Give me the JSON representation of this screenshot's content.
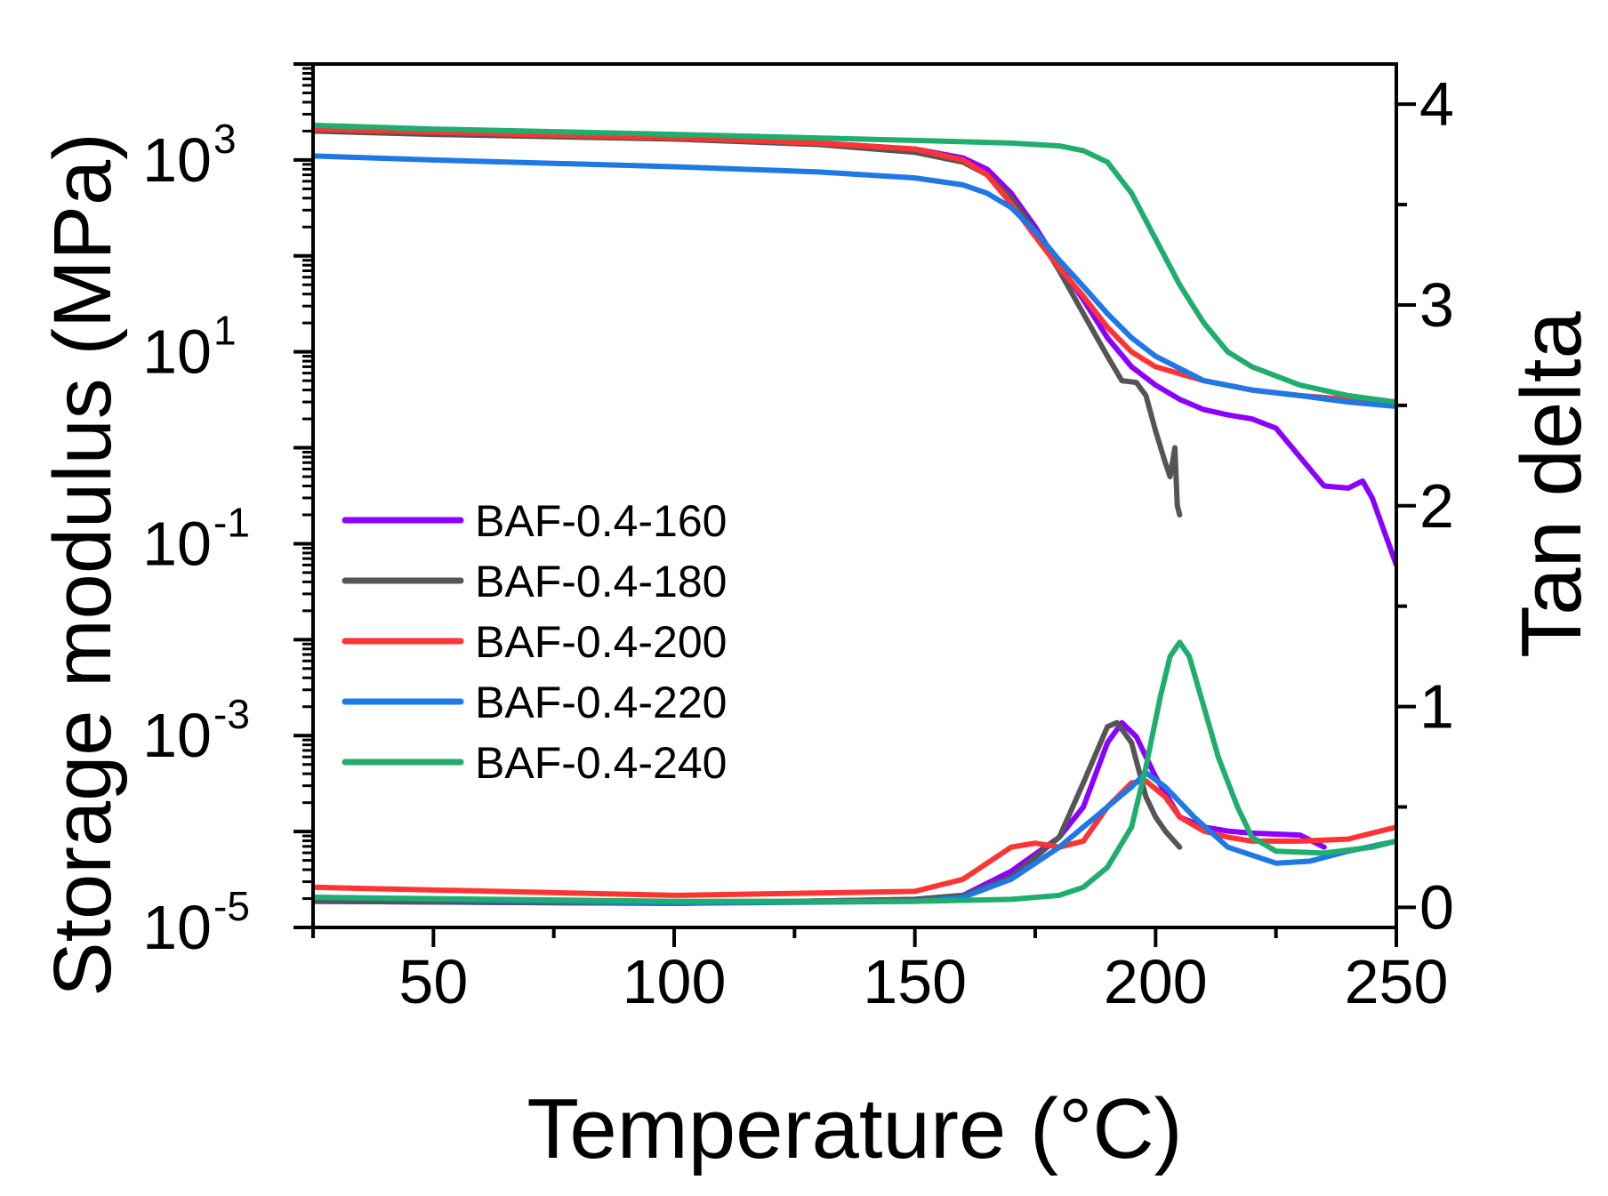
{
  "chart_data": {
    "type": "line",
    "title": "",
    "xlabel": "Temperature (°C)",
    "ylabel_left": "Storage modulus (MPa)",
    "ylabel_right": "Tan delta",
    "xlim": [
      25,
      250
    ],
    "ylim_left_log10": [
      -5,
      4
    ],
    "ylim_right": [
      -0.1,
      4.2
    ],
    "x_ticks": [
      50,
      100,
      150,
      200,
      250
    ],
    "x_tick_labels": [
      "50",
      "100",
      "150",
      "200",
      "250"
    ],
    "y_left_ticks": [
      {
        "exp": 3,
        "base": "10",
        "sup": "3"
      },
      {
        "exp": 1,
        "base": "10",
        "sup": "1"
      },
      {
        "exp": -1,
        "base": "10",
        "sup": "-1"
      },
      {
        "exp": -3,
        "base": "10",
        "sup": "-3"
      },
      {
        "exp": -5,
        "base": "10",
        "sup": "-5"
      }
    ],
    "y_right_ticks": [
      0,
      1,
      2,
      3,
      4
    ],
    "y_right_tick_labels": [
      "0",
      "1",
      "2",
      "3",
      "4"
    ],
    "legend_position": "middle-left",
    "series": [
      {
        "name": "BAF-0.4-160",
        "color": "#8B00FF",
        "storage_modulus": [
          [
            25,
            2100
          ],
          [
            50,
            1950
          ],
          [
            100,
            1700
          ],
          [
            130,
            1500
          ],
          [
            150,
            1300
          ],
          [
            160,
            1050
          ],
          [
            165,
            800
          ],
          [
            170,
            450
          ],
          [
            175,
            200
          ],
          [
            180,
            80
          ],
          [
            185,
            35
          ],
          [
            190,
            14
          ],
          [
            195,
            7
          ],
          [
            200,
            4.5
          ],
          [
            205,
            3.2
          ],
          [
            210,
            2.5
          ],
          [
            215,
            2.2
          ],
          [
            220,
            2.0
          ],
          [
            225,
            1.6
          ],
          [
            230,
            0.8
          ],
          [
            235,
            0.4
          ],
          [
            240,
            0.38
          ],
          [
            243,
            0.45
          ],
          [
            245,
            0.3
          ],
          [
            250,
            0.06
          ]
        ],
        "tan_delta": [
          [
            25,
            0.03
          ],
          [
            100,
            0.02
          ],
          [
            150,
            0.04
          ],
          [
            160,
            0.06
          ],
          [
            170,
            0.18
          ],
          [
            180,
            0.35
          ],
          [
            185,
            0.5
          ],
          [
            190,
            0.82
          ],
          [
            193,
            0.92
          ],
          [
            196,
            0.85
          ],
          [
            200,
            0.65
          ],
          [
            205,
            0.45
          ],
          [
            210,
            0.4
          ],
          [
            215,
            0.38
          ],
          [
            220,
            0.37
          ],
          [
            230,
            0.36
          ],
          [
            235,
            0.3
          ]
        ]
      },
      {
        "name": "BAF-0.4-180",
        "color": "#555555",
        "storage_modulus": [
          [
            25,
            2000
          ],
          [
            50,
            1850
          ],
          [
            100,
            1650
          ],
          [
            130,
            1450
          ],
          [
            150,
            1200
          ],
          [
            160,
            950
          ],
          [
            165,
            700
          ],
          [
            170,
            400
          ],
          [
            175,
            180
          ],
          [
            180,
            70
          ],
          [
            185,
            25
          ],
          [
            190,
            9
          ],
          [
            193,
            5
          ],
          [
            196,
            4.8
          ],
          [
            198,
            3.5
          ],
          [
            200,
            1.5
          ],
          [
            202,
            0.7
          ],
          [
            203,
            0.5
          ],
          [
            204,
            1.0
          ],
          [
            204.5,
            0.25
          ],
          [
            205,
            0.2
          ]
        ],
        "tan_delta": [
          [
            25,
            0.03
          ],
          [
            100,
            0.02
          ],
          [
            150,
            0.04
          ],
          [
            160,
            0.06
          ],
          [
            170,
            0.15
          ],
          [
            180,
            0.35
          ],
          [
            185,
            0.62
          ],
          [
            190,
            0.9
          ],
          [
            192,
            0.92
          ],
          [
            195,
            0.82
          ],
          [
            198,
            0.55
          ],
          [
            200,
            0.45
          ],
          [
            202,
            0.38
          ],
          [
            205,
            0.3
          ]
        ]
      },
      {
        "name": "BAF-0.4-200",
        "color": "#FF3333",
        "storage_modulus": [
          [
            25,
            2100
          ],
          [
            50,
            1950
          ],
          [
            100,
            1700
          ],
          [
            130,
            1500
          ],
          [
            150,
            1300
          ],
          [
            160,
            1000
          ],
          [
            165,
            700
          ],
          [
            170,
            350
          ],
          [
            175,
            160
          ],
          [
            180,
            75
          ],
          [
            185,
            38
          ],
          [
            190,
            18
          ],
          [
            195,
            10
          ],
          [
            200,
            7
          ],
          [
            210,
            5
          ],
          [
            220,
            4
          ],
          [
            230,
            3.5
          ],
          [
            240,
            3.2
          ],
          [
            250,
            3.0
          ]
        ],
        "tan_delta": [
          [
            25,
            0.1
          ],
          [
            100,
            0.06
          ],
          [
            150,
            0.08
          ],
          [
            160,
            0.14
          ],
          [
            165,
            0.22
          ],
          [
            170,
            0.3
          ],
          [
            175,
            0.32
          ],
          [
            180,
            0.3
          ],
          [
            185,
            0.33
          ],
          [
            190,
            0.5
          ],
          [
            195,
            0.62
          ],
          [
            198,
            0.63
          ],
          [
            202,
            0.55
          ],
          [
            205,
            0.45
          ],
          [
            210,
            0.38
          ],
          [
            215,
            0.35
          ],
          [
            220,
            0.33
          ],
          [
            230,
            0.33
          ],
          [
            240,
            0.34
          ],
          [
            250,
            0.4
          ]
        ]
      },
      {
        "name": "BAF-0.4-220",
        "color": "#1E78E6",
        "storage_modulus": [
          [
            25,
            1100
          ],
          [
            50,
            1000
          ],
          [
            100,
            850
          ],
          [
            130,
            750
          ],
          [
            150,
            650
          ],
          [
            160,
            550
          ],
          [
            165,
            450
          ],
          [
            170,
            320
          ],
          [
            175,
            180
          ],
          [
            180,
            90
          ],
          [
            185,
            48
          ],
          [
            190,
            25
          ],
          [
            195,
            14
          ],
          [
            200,
            9
          ],
          [
            210,
            5
          ],
          [
            220,
            4
          ],
          [
            230,
            3.5
          ],
          [
            240,
            3.0
          ],
          [
            250,
            2.7
          ]
        ],
        "tan_delta": [
          [
            25,
            0.05
          ],
          [
            100,
            0.02
          ],
          [
            150,
            0.03
          ],
          [
            160,
            0.05
          ],
          [
            170,
            0.14
          ],
          [
            175,
            0.22
          ],
          [
            180,
            0.3
          ],
          [
            185,
            0.4
          ],
          [
            190,
            0.5
          ],
          [
            195,
            0.6
          ],
          [
            198,
            0.67
          ],
          [
            202,
            0.6
          ],
          [
            208,
            0.45
          ],
          [
            215,
            0.3
          ],
          [
            225,
            0.22
          ],
          [
            232,
            0.23
          ],
          [
            240,
            0.28
          ],
          [
            250,
            0.33
          ]
        ]
      },
      {
        "name": "BAF-0.4-240",
        "color": "#1FAE6E",
        "storage_modulus": [
          [
            25,
            2300
          ],
          [
            50,
            2100
          ],
          [
            100,
            1850
          ],
          [
            150,
            1600
          ],
          [
            170,
            1500
          ],
          [
            180,
            1400
          ],
          [
            185,
            1250
          ],
          [
            190,
            950
          ],
          [
            195,
            450
          ],
          [
            200,
            150
          ],
          [
            205,
            50
          ],
          [
            210,
            20
          ],
          [
            215,
            10
          ],
          [
            220,
            7
          ],
          [
            230,
            4.5
          ],
          [
            240,
            3.5
          ],
          [
            250,
            3.0
          ]
        ],
        "tan_delta": [
          [
            25,
            0.05
          ],
          [
            100,
            0.03
          ],
          [
            150,
            0.03
          ],
          [
            170,
            0.04
          ],
          [
            180,
            0.06
          ],
          [
            185,
            0.1
          ],
          [
            190,
            0.2
          ],
          [
            195,
            0.4
          ],
          [
            198,
            0.7
          ],
          [
            201,
            1.05
          ],
          [
            203,
            1.25
          ],
          [
            205,
            1.32
          ],
          [
            207,
            1.25
          ],
          [
            210,
            1.0
          ],
          [
            213,
            0.75
          ],
          [
            217,
            0.5
          ],
          [
            220,
            0.35
          ],
          [
            225,
            0.28
          ],
          [
            235,
            0.27
          ],
          [
            245,
            0.3
          ],
          [
            250,
            0.33
          ]
        ]
      }
    ]
  }
}
